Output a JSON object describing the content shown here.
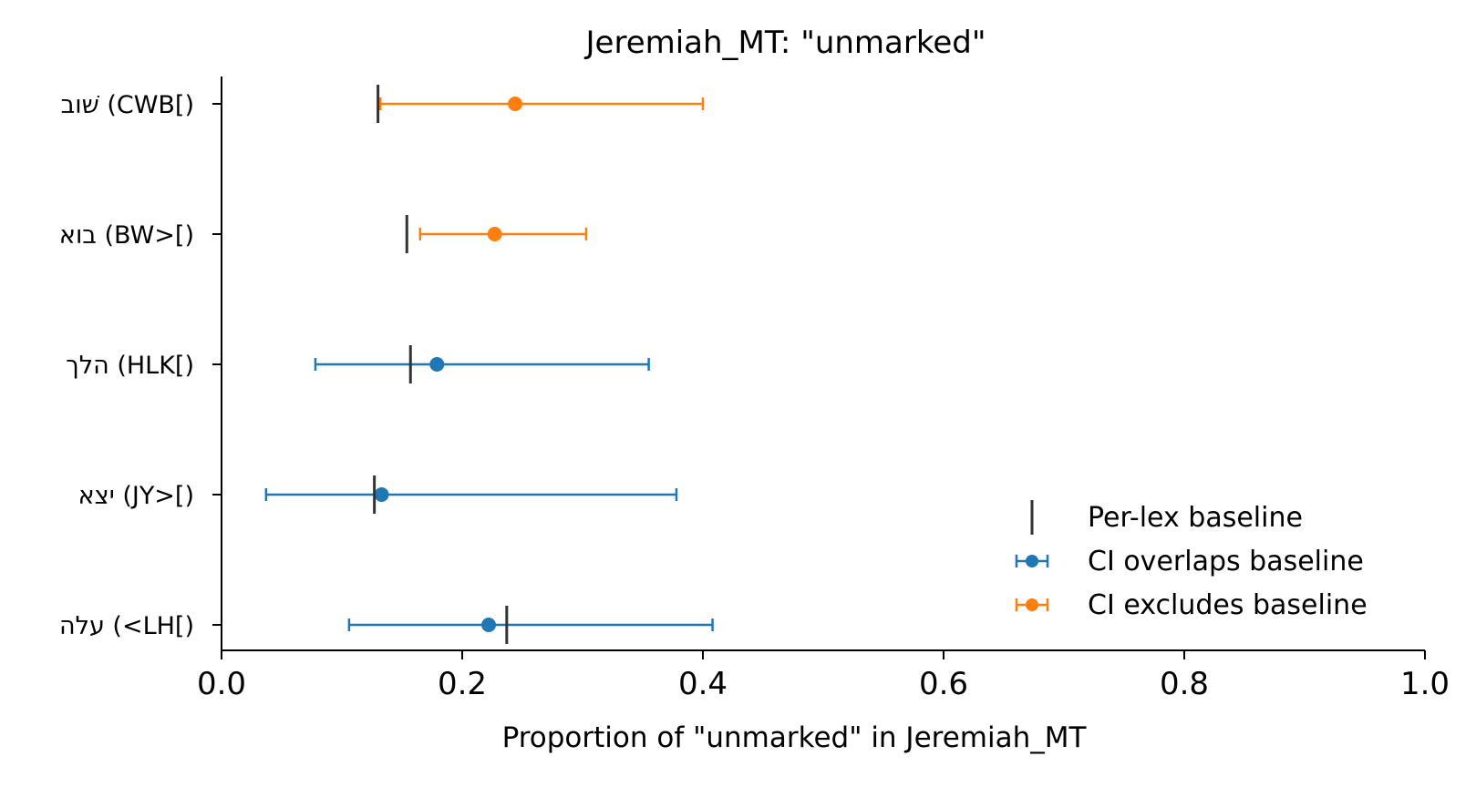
{
  "chart_data": {
    "type": "scatter",
    "title": "Jeremiah_MT: \"unmarked\"",
    "xlabel": "Proportion of \"unmarked\" in Jeremiah_MT",
    "ylabel": "",
    "xlim": [
      0.0,
      1.0
    ],
    "xticks": [
      "0.0",
      "0.2",
      "0.4",
      "0.6",
      "0.8",
      "1.0"
    ],
    "grid": false,
    "legend_position": "lower-right",
    "categories": [
      "שׁוב (CWB[)",
      "בוא (BW>[)",
      "הלך (HLK[)",
      "יצא (JY>[)",
      "עלה (<LH[)"
    ],
    "points": [
      {
        "label": "שׁוב (CWB[)",
        "value": 0.244,
        "ci_low": 0.132,
        "ci_high": 0.4,
        "baseline": 0.13,
        "group": "CI excludes baseline"
      },
      {
        "label": "בוא (BW>[)",
        "value": 0.227,
        "ci_low": 0.165,
        "ci_high": 0.303,
        "baseline": 0.154,
        "group": "CI excludes baseline"
      },
      {
        "label": "הלך (HLK[)",
        "value": 0.179,
        "ci_low": 0.078,
        "ci_high": 0.355,
        "baseline": 0.157,
        "group": "CI overlaps baseline"
      },
      {
        "label": "יצא (JY>[)",
        "value": 0.133,
        "ci_low": 0.037,
        "ci_high": 0.378,
        "baseline": 0.127,
        "group": "CI overlaps baseline"
      },
      {
        "label": "עלה (<LH[)",
        "value": 0.222,
        "ci_low": 0.106,
        "ci_high": 0.408,
        "baseline": 0.237,
        "group": "CI overlaps baseline"
      }
    ],
    "legend": [
      {
        "name": "Per-lex baseline",
        "kind": "baseline",
        "color": "#333333"
      },
      {
        "name": "CI overlaps baseline",
        "kind": "errorbar",
        "color": "#1f77b4"
      },
      {
        "name": "CI excludes baseline",
        "kind": "errorbar",
        "color": "#ff7f0e"
      }
    ],
    "colors": {
      "CI overlaps baseline": "#1f77b4",
      "CI excludes baseline": "#ff7f0e",
      "baseline": "#333333"
    }
  }
}
